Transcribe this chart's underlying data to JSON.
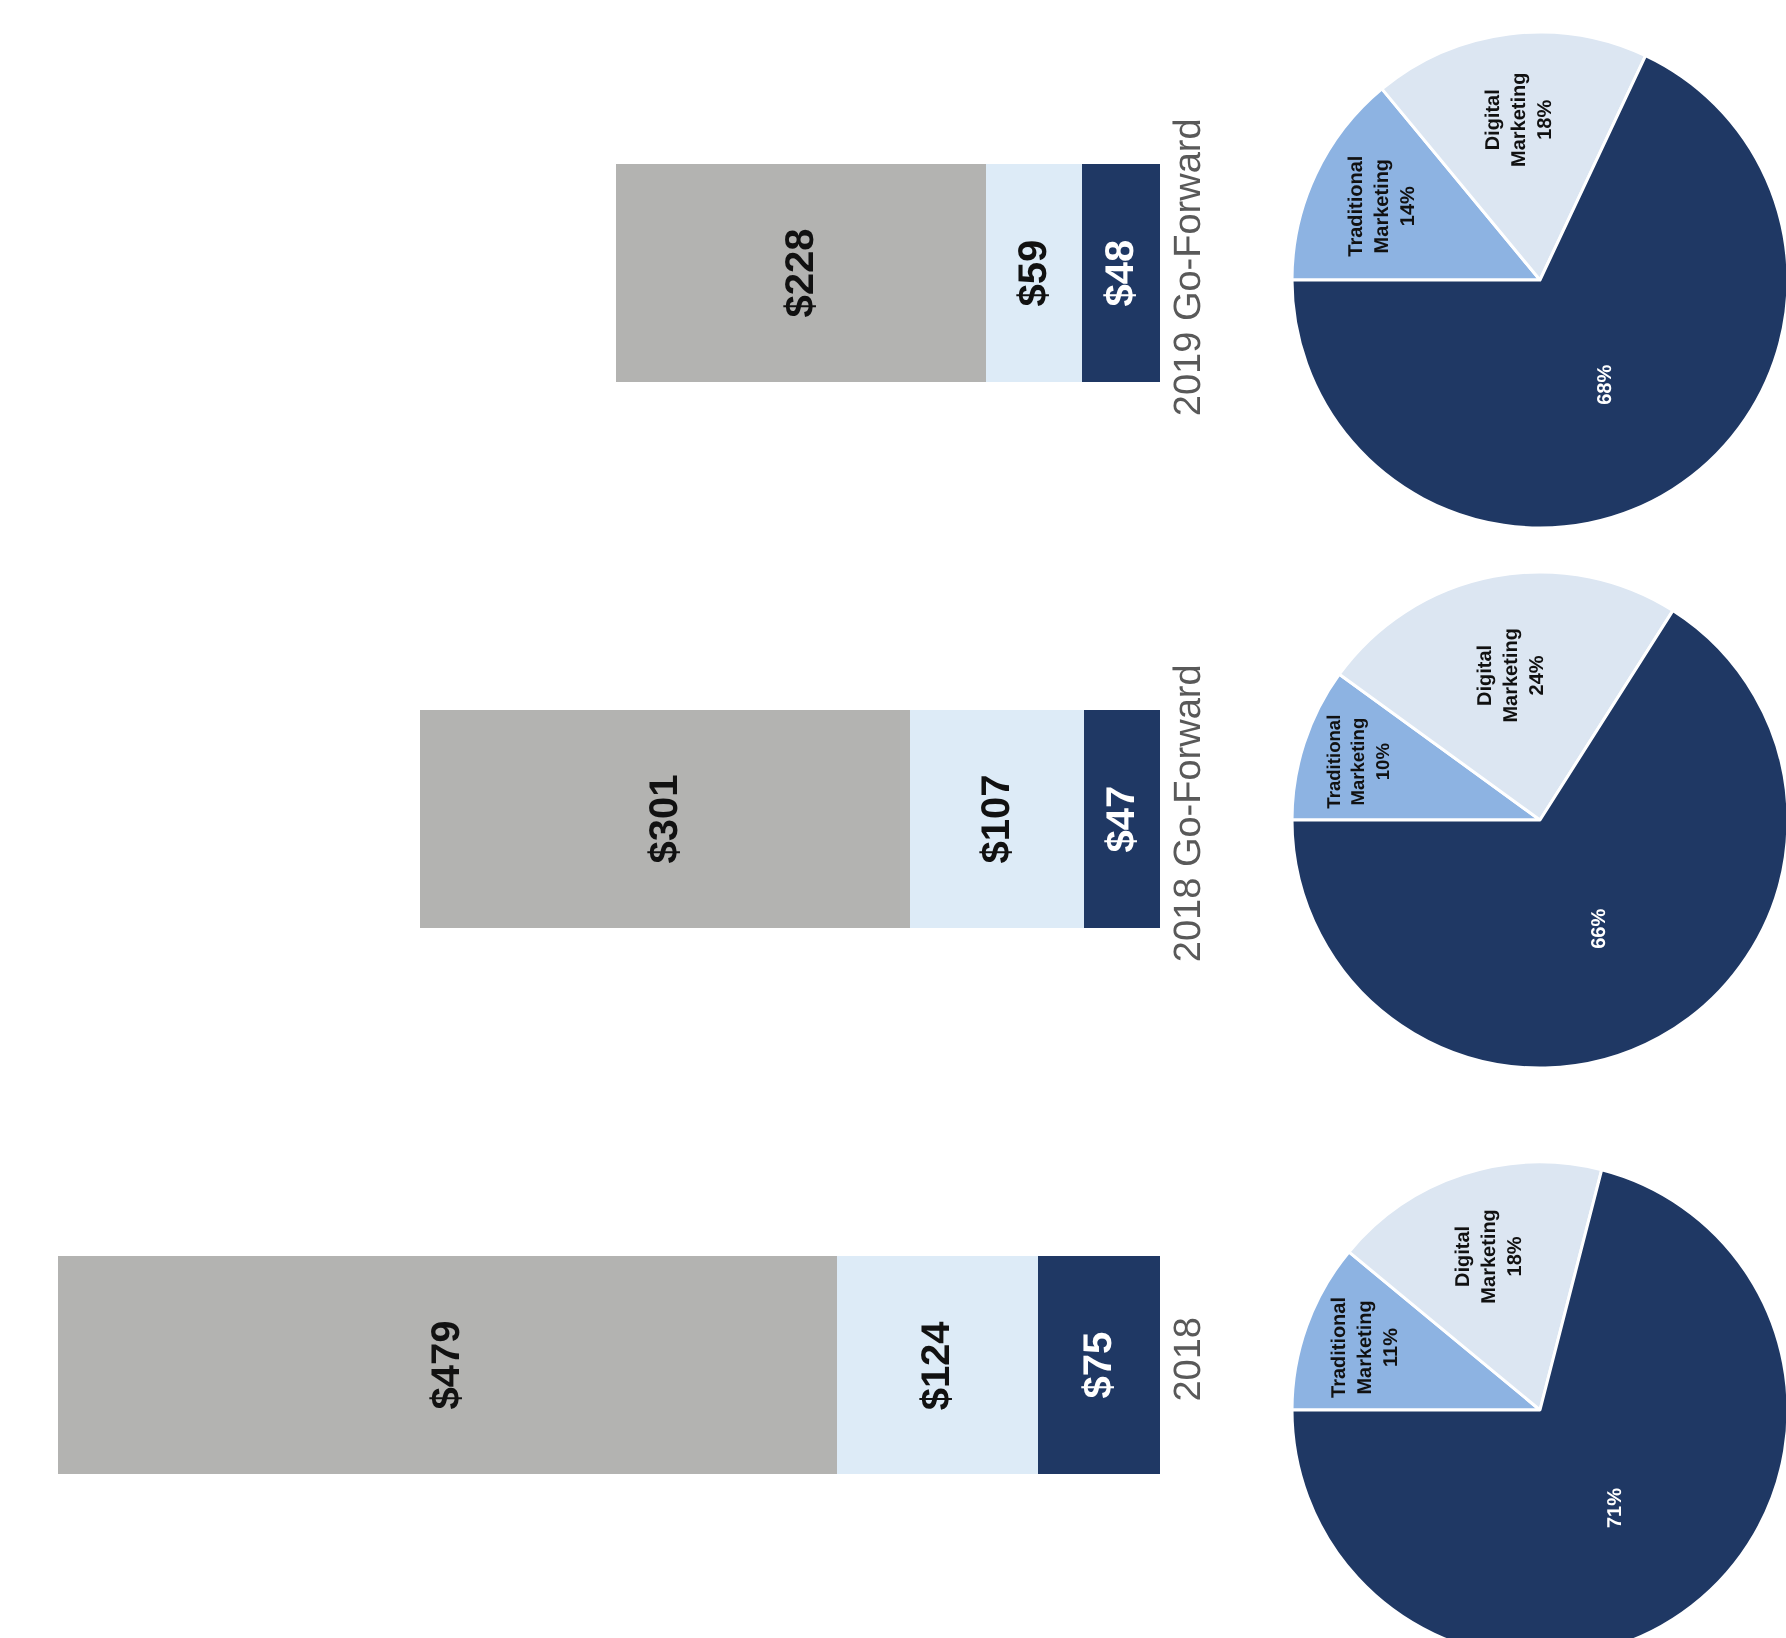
{
  "chart_data": [
    {
      "type": "bar",
      "stacked": true,
      "orientation": "horizontal",
      "categories": [
        "2019 Go-Forward",
        "2018 Go-Forward",
        "2018"
      ],
      "series": [
        {
          "color": "#1f3864",
          "values": [
            48,
            47,
            75
          ],
          "value_labels": [
            "$48",
            "$47",
            "$75"
          ]
        },
        {
          "color": "#ddebf7",
          "values": [
            59,
            107,
            124
          ],
          "value_labels": [
            "$59",
            "$107",
            "$124"
          ]
        },
        {
          "color": "#b3b3b1",
          "values": [
            228,
            301,
            479
          ],
          "value_labels": [
            "$228",
            "$301",
            "$479"
          ]
        }
      ]
    },
    {
      "type": "pie",
      "categories": [
        "Traditional Marketing",
        "Digital Marketing",
        null
      ],
      "values": [
        11,
        18,
        71
      ],
      "value_labels": [
        "11%",
        "18%",
        "71%"
      ],
      "colors": [
        "#8db3e2",
        "#dce6f2",
        "#1f3864"
      ]
    },
    {
      "type": "pie",
      "categories": [
        "Traditional Marketing",
        "Digital Marketing",
        null
      ],
      "values": [
        10,
        24,
        66
      ],
      "value_labels": [
        "10%",
        "24%",
        "66%"
      ],
      "colors": [
        "#8db3e2",
        "#dce6f2",
        "#1f3864"
      ]
    },
    {
      "type": "pie",
      "categories": [
        "Traditional Marketing",
        "Digital Marketing",
        null
      ],
      "values": [
        14,
        18,
        68
      ],
      "value_labels": [
        "14%",
        "18%",
        "68%"
      ],
      "colors": [
        "#8db3e2",
        "#dce6f2",
        "#1f3864"
      ]
    }
  ]
}
